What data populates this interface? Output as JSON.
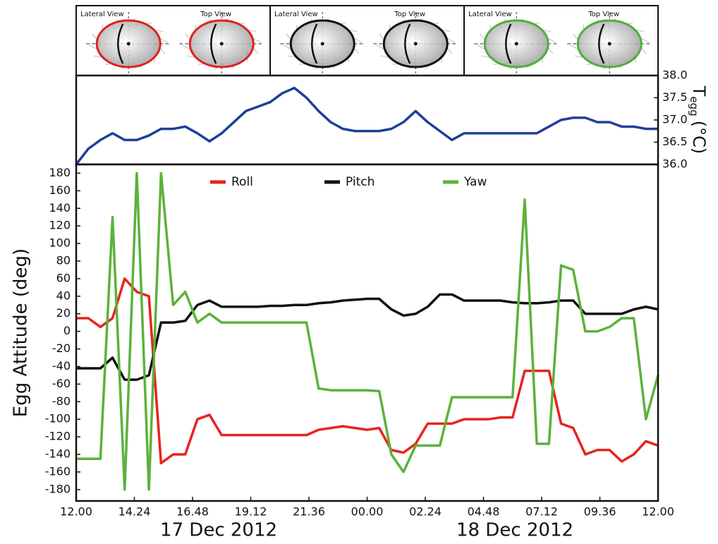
{
  "panels": [
    {
      "lateral_label": "Lateral View",
      "top_label": "Top View",
      "color": "#e02020"
    },
    {
      "lateral_label": "Lateral View",
      "top_label": "Top View",
      "color": "#111111"
    },
    {
      "lateral_label": "Lateral View",
      "top_label": "Top View",
      "color": "#4fae3a"
    }
  ],
  "chart_data": [
    {
      "type": "line",
      "ylabel": {
        "main": "T",
        "sub": "egg",
        "unit": "(°C)"
      },
      "x": [
        0,
        0.5,
        1,
        1.5,
        2,
        2.5,
        3,
        3.5,
        4,
        4.5,
        5,
        5.5,
        6,
        6.5,
        7,
        7.5,
        8,
        8.5,
        9,
        9.5,
        10,
        10.5,
        11,
        11.5,
        12,
        12.5,
        13,
        13.5,
        14,
        14.5,
        15,
        15.5,
        16,
        16.5,
        17,
        17.5,
        18,
        18.5,
        19,
        19.5,
        20,
        20.5,
        21,
        21.5,
        22,
        22.5,
        23,
        23.5,
        24
      ],
      "series": [
        {
          "name": "Tegg",
          "color": "#1f3f99",
          "values": [
            36.0,
            36.35,
            36.55,
            36.7,
            36.55,
            36.55,
            36.65,
            36.8,
            36.8,
            36.85,
            36.7,
            36.52,
            36.7,
            36.95,
            37.2,
            37.3,
            37.4,
            37.6,
            37.72,
            37.5,
            37.2,
            36.95,
            36.8,
            36.75,
            36.75,
            36.75,
            36.8,
            36.95,
            37.2,
            36.95,
            36.75,
            36.55,
            36.7,
            36.7,
            36.7,
            36.7,
            36.7,
            36.7,
            36.7,
            36.85,
            37.0,
            37.05,
            37.05,
            36.95,
            36.95,
            36.85,
            36.85,
            36.8,
            36.8
          ]
        }
      ],
      "xlim": [
        0,
        24
      ],
      "ylim": [
        36,
        38
      ],
      "yticks": [
        {
          "value": 36,
          "label": "36.0"
        },
        {
          "value": 36.5,
          "label": "36.5"
        },
        {
          "value": 37,
          "label": "37.0"
        },
        {
          "value": 37.5,
          "label": "37.5"
        },
        {
          "value": 38,
          "label": "38.0"
        }
      ],
      "yaxis_side": "right"
    },
    {
      "type": "line",
      "ylabel": "Egg Attitude (deg)",
      "annotations": [
        "17 Dec 2012",
        "18 Dec 2012"
      ],
      "x": [
        0,
        0.5,
        1,
        1.5,
        2,
        2.5,
        3,
        3.5,
        4,
        4.5,
        5,
        5.5,
        6,
        6.5,
        7,
        7.5,
        8,
        8.5,
        9,
        9.5,
        10,
        10.5,
        11,
        11.5,
        12,
        12.5,
        13,
        13.5,
        14,
        14.5,
        15,
        15.5,
        16,
        16.5,
        17,
        17.5,
        18,
        18.5,
        19,
        19.5,
        20,
        20.5,
        21,
        21.5,
        22,
        22.5,
        23,
        23.5,
        24
      ],
      "series": [
        {
          "name": "Roll",
          "color": "#e8231f",
          "values": [
            15,
            15,
            5,
            15,
            60,
            45,
            40,
            -150,
            -140,
            -140,
            -100,
            -95,
            -118,
            -118,
            -118,
            -118,
            -118,
            -118,
            -118,
            -118,
            -112,
            -110,
            -108,
            -110,
            -112,
            -110,
            -135,
            -138,
            -128,
            -105,
            -105,
            -105,
            -100,
            -100,
            -100,
            -98,
            -98,
            -45,
            -45,
            -45,
            -105,
            -110,
            -140,
            -135,
            -135,
            -148,
            -140,
            -125,
            -130
          ]
        },
        {
          "name": "Pitch",
          "color": "#111111",
          "values": [
            -42,
            -42,
            -42,
            -30,
            -55,
            -55,
            -50,
            10,
            10,
            12,
            30,
            35,
            28,
            28,
            28,
            28,
            29,
            29,
            30,
            30,
            32,
            33,
            35,
            36,
            37,
            37,
            25,
            18,
            20,
            28,
            42,
            42,
            35,
            35,
            35,
            35,
            33,
            32,
            32,
            33,
            35,
            35,
            20,
            20,
            20,
            20,
            25,
            28,
            25
          ]
        },
        {
          "name": "Yaw",
          "color": "#5cb23a",
          "values": [
            -145,
            -145,
            -145,
            130,
            -180,
            180,
            -180,
            180,
            30,
            45,
            10,
            20,
            10,
            10,
            10,
            10,
            10,
            10,
            10,
            10,
            -65,
            -67,
            -67,
            -67,
            -67,
            -68,
            -140,
            -160,
            -130,
            -130,
            -130,
            -75,
            -75,
            -75,
            -75,
            -75,
            -75,
            150,
            -128,
            -128,
            75,
            70,
            0,
            0,
            5,
            15,
            15,
            -100,
            -50
          ]
        }
      ],
      "xlim": [
        0,
        24
      ],
      "ylim": [
        -193,
        190
      ],
      "xticks": [
        {
          "value": 0,
          "label": "12.00"
        },
        {
          "value": 2.4,
          "label": "14.24"
        },
        {
          "value": 4.8,
          "label": "16.48"
        },
        {
          "value": 7.2,
          "label": "19.12"
        },
        {
          "value": 9.6,
          "label": "21.36"
        },
        {
          "value": 12,
          "label": "00.00"
        },
        {
          "value": 14.4,
          "label": "02.24"
        },
        {
          "value": 16.8,
          "label": "04.48"
        },
        {
          "value": 19.2,
          "label": "07.12"
        },
        {
          "value": 21.6,
          "label": "09.36"
        },
        {
          "value": 24,
          "label": "12.00"
        }
      ],
      "yticks": [
        -180,
        -160,
        -140,
        -120,
        -100,
        -80,
        -60,
        -40,
        -20,
        0,
        20,
        40,
        60,
        80,
        100,
        120,
        140,
        160,
        180
      ],
      "legend": "top-center"
    }
  ]
}
